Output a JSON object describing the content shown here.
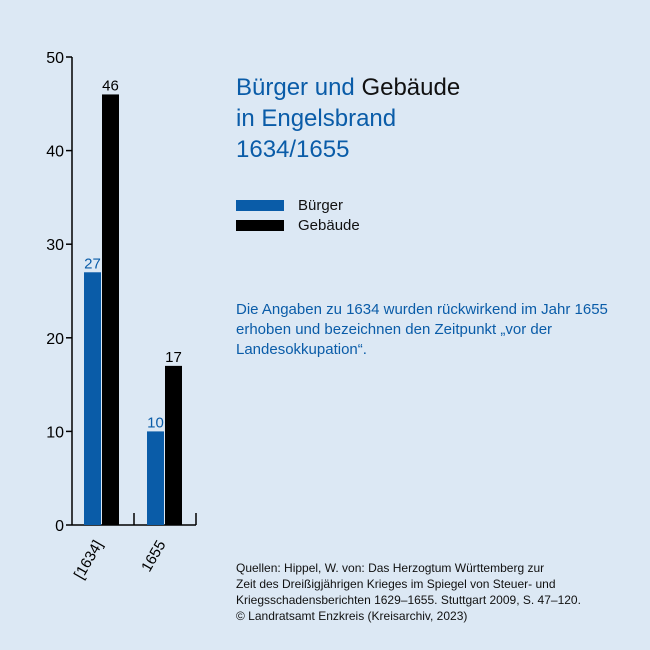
{
  "title": {
    "word1": "Bürger",
    "word2": "und",
    "word3": "Gebäude",
    "line2": "in Engelsbrand",
    "line3": "1634/1655"
  },
  "legend": [
    {
      "label": "Bürger",
      "color": "#0a5ca8"
    },
    {
      "label": "Gebäude",
      "color": "#000000"
    }
  ],
  "note": "Die Angaben zu 1634 wurden rückwirkend im Jahr 1655 erhoben und bezeichnen den Zeitpunkt „vor der Landesokkupation“.",
  "sources": [
    "Quellen: Hippel, W. von: Das Herzogtum Württemberg zur",
    "Zeit des Dreißigjährigen Krieges im Spiegel von Steuer- und",
    "Kriegsschadensberichten 1629–1655. Stuttgart 2009, S. 47–120.",
    "© Landratsamt Enzkreis (Kreisarchiv, 2023)"
  ],
  "chart_data": {
    "type": "bar",
    "categories": [
      "[1634]",
      "1655"
    ],
    "series": [
      {
        "name": "Bürger",
        "color": "#0a5ca8",
        "values": [
          27,
          10
        ]
      },
      {
        "name": "Gebäude",
        "color": "#000000",
        "values": [
          46,
          17
        ]
      }
    ],
    "ylim": [
      0,
      50
    ],
    "yticks": [
      0,
      10,
      20,
      30,
      40,
      50
    ],
    "grid": false
  }
}
